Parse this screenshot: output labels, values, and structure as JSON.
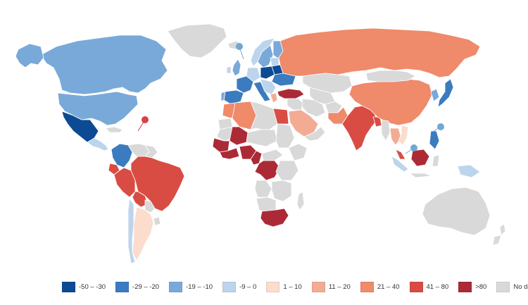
{
  "colors": {
    "ocean": "#ffffff",
    "border": "#ffffff",
    "no_data": "#d9d9d9",
    "marker_neg": "#6fa8d6",
    "marker_pos": "#d6404a"
  },
  "legend": [
    {
      "label": "-50 – -30",
      "color": "#0d4a94"
    },
    {
      "label": "-29 – -20",
      "color": "#3b7bbf"
    },
    {
      "label": "-19 – -10",
      "color": "#79a9d8"
    },
    {
      "label": "-9 – 0",
      "color": "#bcd5ec"
    },
    {
      "label": "1 – 10",
      "color": "#fbdccd"
    },
    {
      "label": "11 – 20",
      "color": "#f4ab94"
    },
    {
      "label": "21 – 40",
      "color": "#ef8a6b"
    },
    {
      "label": "41 – 80",
      "color": "#d84c43"
    },
    {
      "label": ">80",
      "color": "#ab2a36"
    },
    {
      "label": "No data",
      "color": "#d9d9d9"
    }
  ]
}
